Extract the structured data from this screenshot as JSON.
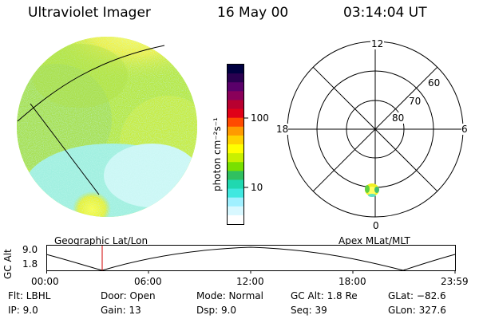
{
  "header": {
    "instrument": "Ultraviolet Imager",
    "date": "16 May 00",
    "time": "03:14:04 UT"
  },
  "colorbar": {
    "unit_label": "photon cm⁻²s⁻¹",
    "ticks": [
      "100",
      "10"
    ],
    "colors": [
      "#000040",
      "#2a0050",
      "#5a006a",
      "#8a005a",
      "#b80030",
      "#e00018",
      "#ff4a00",
      "#ff9a00",
      "#ffd200",
      "#ffff00",
      "#c8f000",
      "#78e000",
      "#30c060",
      "#20d8b0",
      "#40e8e0",
      "#a0f0ff",
      "#d8f8ff",
      "#ffffff"
    ]
  },
  "polar": {
    "mlt_labels": {
      "top": "12",
      "left": "18",
      "right": "6",
      "bottom": "0"
    },
    "lat_labels": [
      "60",
      "70",
      "80"
    ]
  },
  "altitude_plot": {
    "axis_label": "GC Alt",
    "left_title": "Geographic Lat/Lon",
    "right_title": "Apex MLat/MLT",
    "y_ticks": [
      "9.0",
      "1.8"
    ],
    "x_ticks": [
      "00:00",
      "06:00",
      "12:00",
      "18:00",
      "23:59"
    ]
  },
  "info": {
    "flt": "Flt: LBHL",
    "ip": "IP:  9.0",
    "door": "Door: Open",
    "gain": "Gain: 13",
    "mode": "Mode: Normal",
    "dsp": "Dsp:     9.0",
    "gc_alt": "GC Alt: 1.8 Re",
    "seq": "Seq: 39",
    "glat": "GLat: −82.6",
    "glon": "GLon: 327.6"
  }
}
